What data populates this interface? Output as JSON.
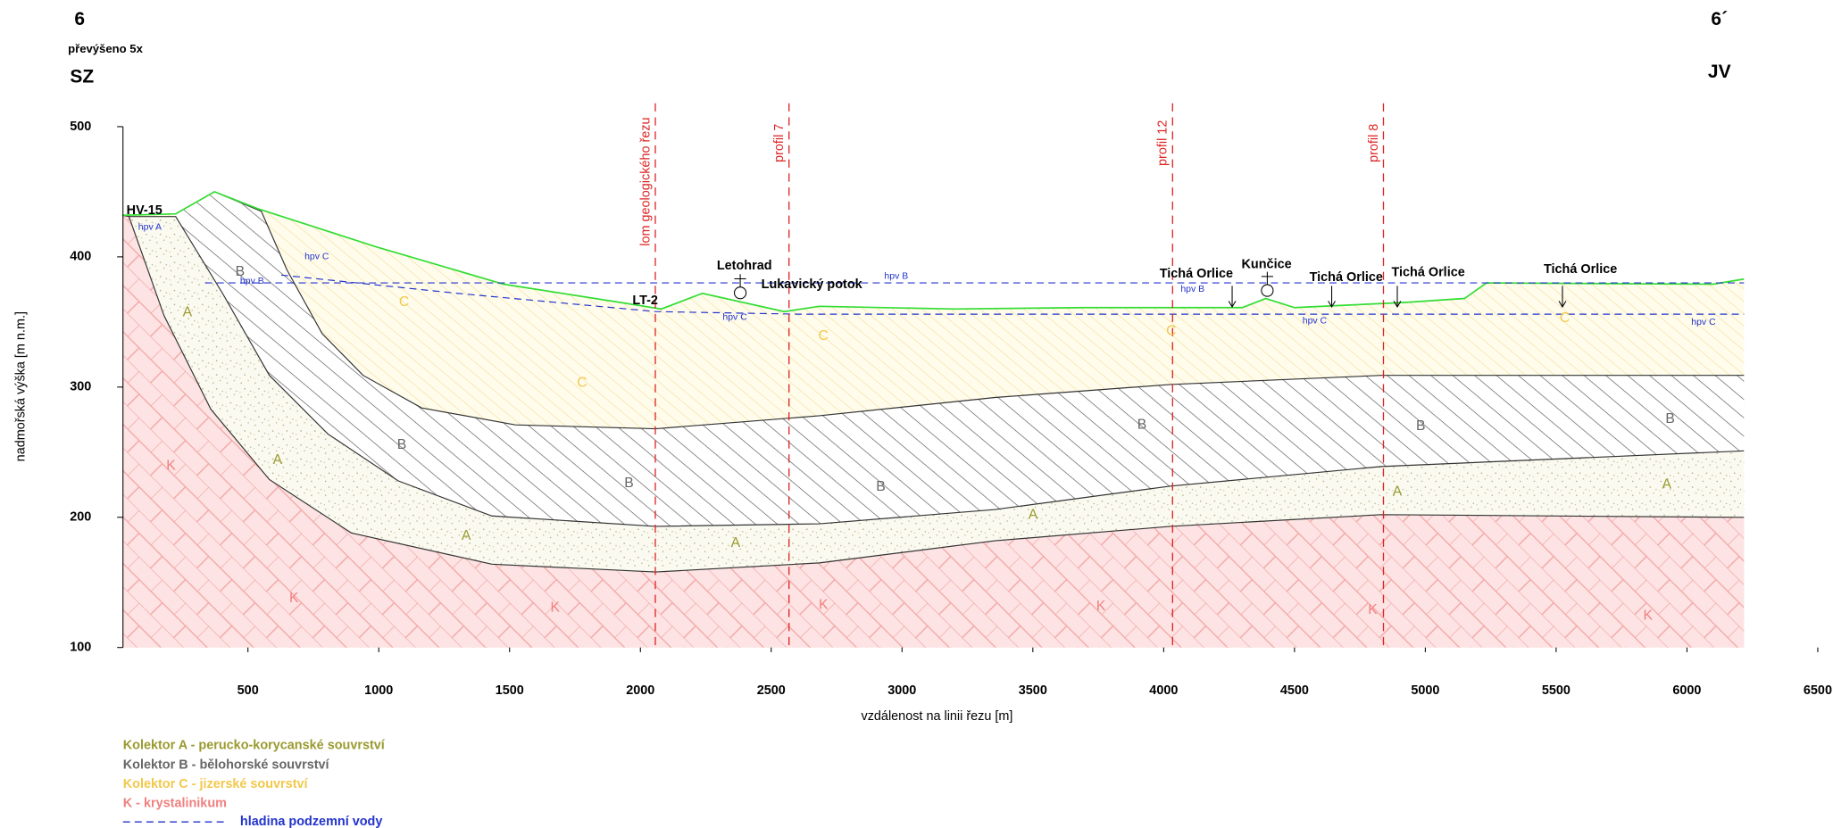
{
  "chart_data": {
    "type": "cross-section",
    "title": "6",
    "subtitle": "převýšeno 5x",
    "left_label": "SZ",
    "end_title": "6´",
    "right_label": "JV",
    "xlabel": "vzdálenost na linii řezu [m]",
    "ylabel": "nadmořská výška [m n.m.]",
    "xlim": [
      0,
      6500
    ],
    "ylim": [
      100,
      500
    ],
    "xticks": [
      500,
      1000,
      1500,
      2000,
      2500,
      3000,
      3500,
      4000,
      4500,
      5000,
      5500,
      6000,
      6500
    ],
    "yticks": [
      100,
      200,
      300,
      400,
      500
    ],
    "boundaries": [
      {
        "color": "#33dd33",
        "x": [
          20,
          224,
          372,
          538,
          985,
          1477,
          1924,
          2080,
          2237,
          2550,
          2684,
          3200,
          3700,
          4026,
          4300,
          4390,
          4500,
          4921,
          5150,
          5234,
          6100,
          6218
        ],
        "y": [
          432,
          433,
          450,
          437,
          408,
          379,
          365,
          360,
          372,
          358,
          362,
          360,
          361,
          361,
          361,
          368,
          361,
          365,
          368,
          380,
          379,
          383
        ]
      },
      {
        "color": "#333333",
        "x": [
          224,
          372,
          551,
          649,
          784,
          940,
          1164,
          1522,
          2058,
          2684,
          3355,
          4026,
          4831,
          6218
        ],
        "y": [
          433,
          450,
          435,
          390,
          341,
          309,
          284,
          271,
          268,
          278,
          292,
          302,
          309,
          309
        ]
      },
      {
        "color": "#333333",
        "x": [
          45,
          224,
          403,
          582,
          806,
          1074,
          1432,
          2058,
          2684,
          3355,
          4026,
          4831,
          6218
        ],
        "y": [
          431,
          431,
          372,
          309,
          264,
          228,
          201,
          193,
          195,
          206,
          224,
          239,
          251
        ]
      },
      {
        "color": "#333333",
        "x": [
          20,
          45,
          179,
          358,
          582,
          895,
          1432,
          2058,
          2684,
          3355,
          4026,
          4831,
          6218
        ],
        "y": [
          432,
          431,
          355,
          283,
          229,
          188,
          164,
          158,
          165,
          182,
          193,
          202,
          200
        ]
      }
    ],
    "layers": [
      {
        "letter": "C",
        "color": "#f2c84b"
      },
      {
        "letter": "B",
        "color": "#666666"
      },
      {
        "letter": "A",
        "color": "#9a9a30"
      },
      {
        "letter": "K",
        "color": "#f08080"
      }
    ],
    "legend": [
      "Kolektor A - perucko-korycanské souvrství",
      "Kolektor B - bělohorské souvrství",
      "Kolektor C - jizerské souvrství",
      "K - krystalinikum"
    ],
    "groundwater": {
      "name": "hladina podzemní vody",
      "color": "#2233cc",
      "lines": [
        {
          "x": [
            336,
            6218
          ],
          "y": [
            380,
            380
          ]
        },
        {
          "x": [
            627,
            1300,
            2058,
            2600,
            4600,
            6218
          ],
          "y": [
            386,
            372,
            358,
            356,
            356,
            356
          ]
        }
      ]
    },
    "profiles": [
      {
        "name": "lom geologického řezu",
        "x": 2057
      },
      {
        "name": "profil 7",
        "x": 2568
      },
      {
        "name": "profil 12",
        "x": 4034
      },
      {
        "name": "profil 8",
        "x": 4840
      }
    ],
    "annotations": [
      "HV-15",
      "hpv A",
      "hpv B",
      "hpv C",
      "LT-2",
      "Letohrad",
      "Lukavický potok",
      "hpv B",
      "hpv C",
      "Tichá Orlice",
      "hpv B",
      "Kunčice",
      "Tichá Orlice",
      "hpv C",
      "Tichá Orlice",
      "Tichá Orlice",
      "hpv C"
    ]
  }
}
